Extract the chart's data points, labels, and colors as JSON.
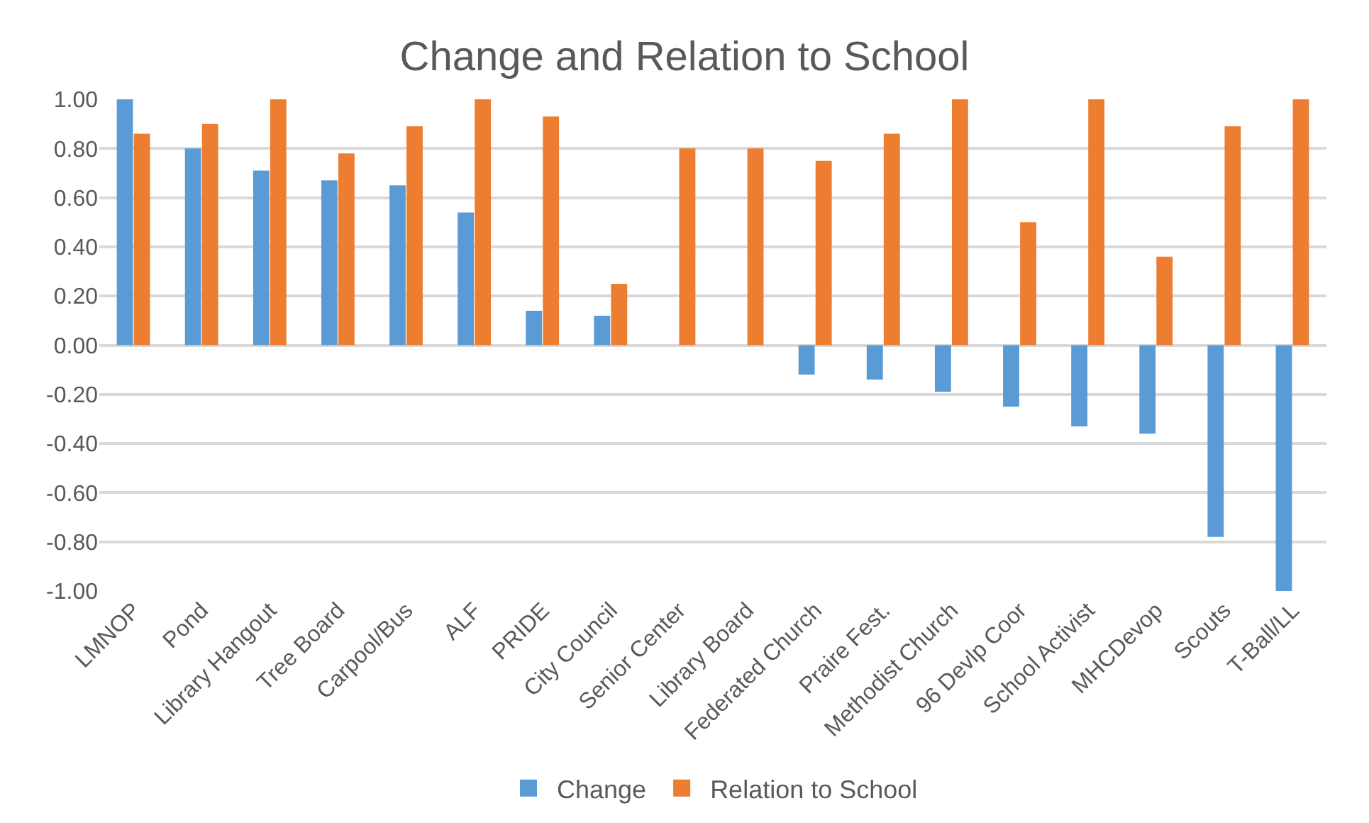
{
  "chart_data": {
    "type": "bar",
    "title": "Change and Relation to School",
    "categories": [
      "LMNOP",
      "Pond",
      "Library Hangout",
      "Tree Board",
      "Carpool/Bus",
      "ALF",
      "PRIDE",
      "City Council",
      "Senior Center",
      "Library Board",
      "Federated Church",
      "Praire Fest.",
      "Methodist Church",
      "96 Devlp Coor",
      "School Activist",
      "MHCDevop",
      "Scouts",
      "T-Ball/LL"
    ],
    "series": [
      {
        "name": "Change",
        "color": "#5b9bd5",
        "values": [
          1.0,
          0.8,
          0.71,
          0.67,
          0.65,
          0.54,
          0.14,
          0.12,
          0,
          0,
          -0.12,
          -0.14,
          -0.19,
          -0.25,
          -0.33,
          -0.36,
          -0.78,
          -1.0
        ]
      },
      {
        "name": "Relation to School",
        "color": "#ed7d31",
        "values": [
          0.86,
          0.9,
          1.0,
          0.78,
          0.89,
          1.0,
          0.93,
          0.25,
          0.8,
          0.8,
          0.75,
          0.86,
          1.0,
          0.5,
          1.0,
          0.36,
          0.89,
          1.0
        ]
      }
    ],
    "ylim": [
      -1.0,
      1.0
    ],
    "yticks": [
      {
        "value": -1,
        "label": "-1.00"
      },
      {
        "value": -0.8,
        "label": "-0.80"
      },
      {
        "value": -0.6,
        "label": "-0.60"
      },
      {
        "value": -0.4,
        "label": "-0.40"
      },
      {
        "value": -0.2,
        "label": "-0.20"
      },
      {
        "value": 0,
        "label": "0.00"
      },
      {
        "value": 0.2,
        "label": "0.20"
      },
      {
        "value": 0.4,
        "label": "0.40"
      },
      {
        "value": 0.6,
        "label": "0.60"
      },
      {
        "value": 0.8,
        "label": "0.80"
      },
      {
        "value": 1,
        "label": "1.00"
      }
    ],
    "grid": "y",
    "legend": "bottom"
  }
}
